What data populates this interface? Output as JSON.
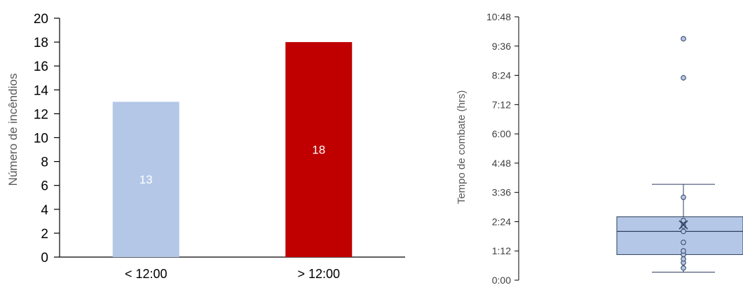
{
  "chart_data": [
    {
      "type": "bar",
      "categories": [
        "< 12:00",
        "> 12:00"
      ],
      "values": [
        13,
        18
      ],
      "data_labels": [
        "13",
        "18"
      ],
      "colors": [
        "#b4c7e7",
        "#c00000"
      ],
      "label_color": "#ffffff",
      "ylabel": "Número de incêndios",
      "ylim": [
        0,
        20
      ],
      "yticks": [
        "0",
        "2",
        "4",
        "6",
        "8",
        "10",
        "12",
        "14",
        "16",
        "18",
        "20"
      ],
      "grid": false
    },
    {
      "type": "box",
      "ylabel": "Tempo de combate (hrs)",
      "ylim_hours": [
        0,
        10.8
      ],
      "yticks": [
        "0:00",
        "1:12",
        "2:24",
        "3:36",
        "4:48",
        "6:00",
        "7:12",
        "8:24",
        "9:36",
        "10:48"
      ],
      "box_color": "#b4c7e7",
      "stats_hours": {
        "whisker_low": 0.33,
        "q1": 1.05,
        "median": 2.0,
        "mean": 2.27,
        "q3": 2.6,
        "whisker_high": 3.93
      },
      "points_hours": [
        0.5,
        0.72,
        0.87,
        1.05,
        1.2,
        1.55,
        2.0,
        2.22,
        2.45,
        3.4
      ],
      "outliers_hours": [
        8.3,
        9.9
      ],
      "grid": false
    }
  ]
}
